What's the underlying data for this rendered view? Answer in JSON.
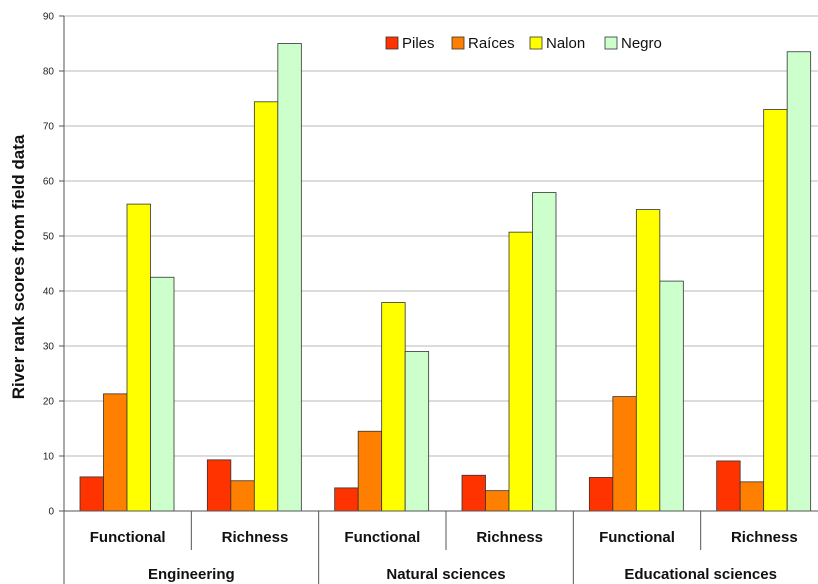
{
  "chart_data": {
    "type": "bar",
    "title": "",
    "ylabel": "River rank scores from field data",
    "ylim": [
      0,
      90
    ],
    "yticks": [
      0,
      10,
      20,
      30,
      40,
      50,
      60,
      70,
      80,
      90
    ],
    "grid": true,
    "legend_position": "top-right",
    "groups": [
      {
        "label": "Engineering",
        "categories": [
          "Functional",
          "Richness"
        ]
      },
      {
        "label": "Natural sciences",
        "categories": [
          "Functional",
          "Richness"
        ]
      },
      {
        "label": "Educational sciences",
        "categories": [
          "Functional",
          "Richness"
        ]
      }
    ],
    "series": [
      {
        "name": "Piles",
        "color": "#ff3300",
        "values": [
          6.2,
          9.3,
          4.2,
          6.5,
          6.1,
          9.1
        ]
      },
      {
        "name": "Raíces",
        "color": "#ff7f00",
        "values": [
          21.3,
          5.5,
          14.5,
          3.7,
          20.8,
          5.3
        ]
      },
      {
        "name": "Nalon",
        "color": "#ffff00",
        "values": [
          55.8,
          74.4,
          37.9,
          50.7,
          54.8,
          73.0
        ]
      },
      {
        "name": "Negro",
        "color": "#ccffcc",
        "values": [
          42.5,
          85.0,
          29.0,
          57.9,
          41.8,
          83.5
        ]
      }
    ]
  }
}
